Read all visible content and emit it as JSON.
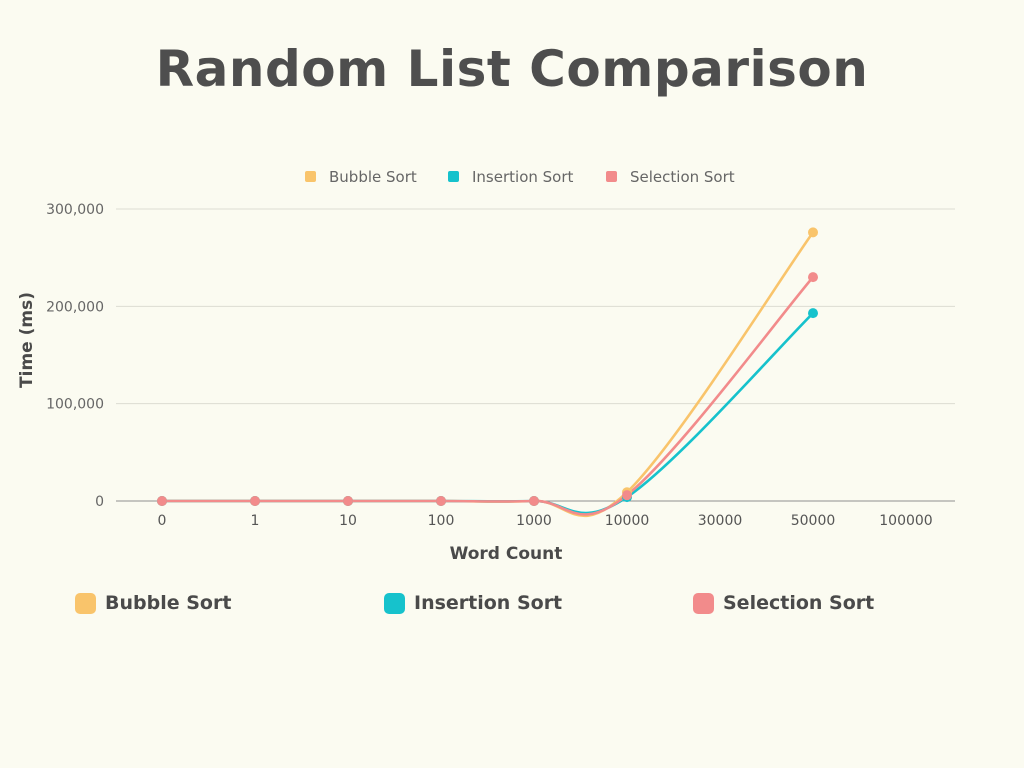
{
  "title": "Random List Comparison",
  "chart_data": {
    "type": "line",
    "title": "Random List Comparison",
    "xlabel": "Word Count",
    "ylabel": "Time (ms)",
    "categories": [
      "0",
      "1",
      "10",
      "100",
      "1000",
      "10000",
      "30000",
      "50000",
      "100000"
    ],
    "ylim": [
      0,
      300000
    ],
    "yticks": [
      0,
      100000,
      200000,
      300000
    ],
    "ytick_labels": [
      "0",
      "100,000",
      "200,000",
      "300,000"
    ],
    "grid": true,
    "legend_position": "top",
    "series": [
      {
        "name": "Bubble Sort",
        "color": "#f9c46b",
        "values": [
          0,
          0,
          0,
          0,
          0,
          9000,
          null,
          276000,
          null
        ]
      },
      {
        "name": "Insertion Sort",
        "color": "#16c2cc",
        "values": [
          0,
          0,
          0,
          0,
          0,
          4000,
          null,
          193000,
          null
        ]
      },
      {
        "name": "Selection Sort",
        "color": "#f28b8b",
        "values": [
          0,
          0,
          0,
          0,
          0,
          6000,
          null,
          230000,
          null
        ]
      }
    ]
  },
  "colors": {
    "background": "#fbfbf1",
    "grid": "#dcdcd2",
    "text": "#4a4a4a"
  }
}
